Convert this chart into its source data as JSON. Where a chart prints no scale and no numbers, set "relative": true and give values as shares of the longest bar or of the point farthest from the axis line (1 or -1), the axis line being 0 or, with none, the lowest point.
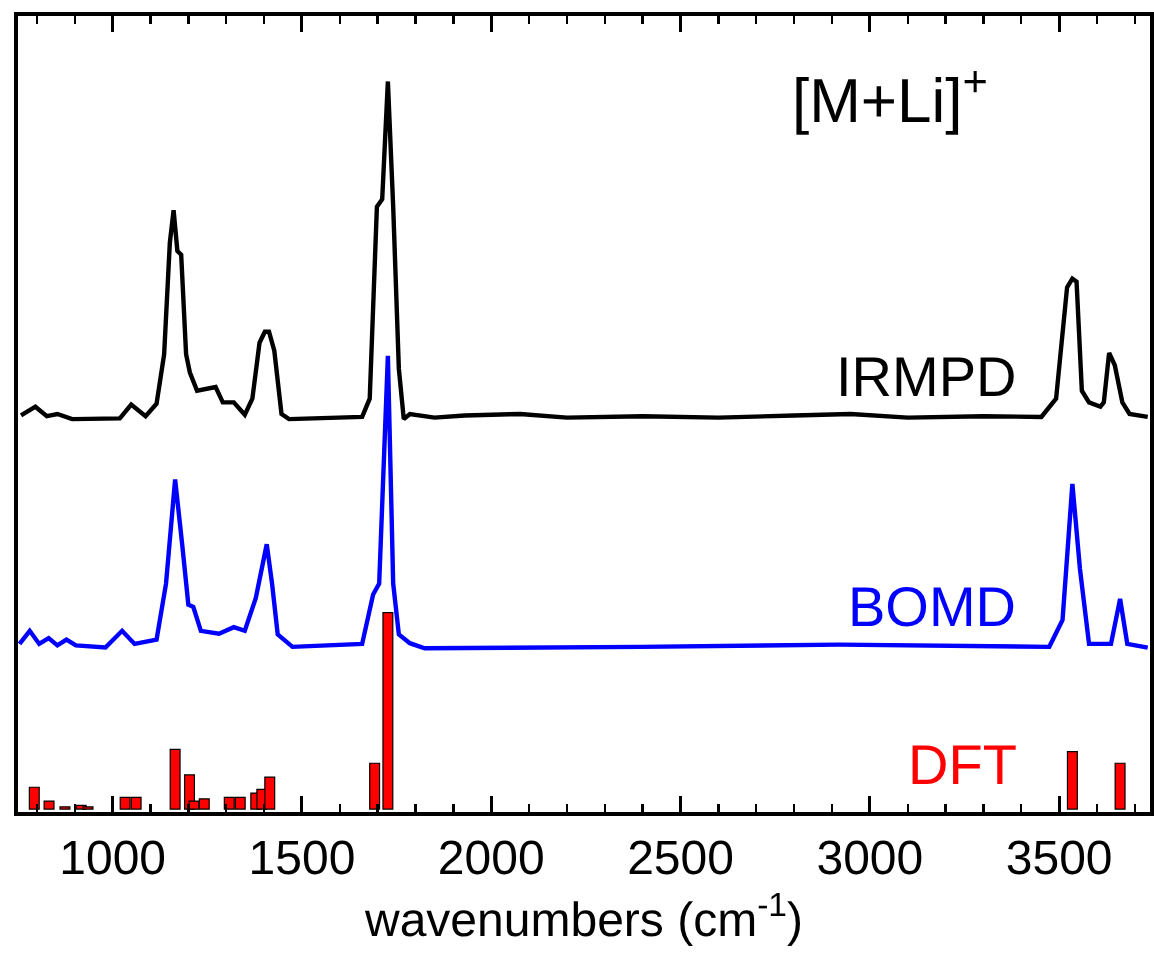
{
  "chart_data": {
    "type": "line",
    "relative": true,
    "xlabel": "wavenumbers (cm$^{-1}$)",
    "annotations": [
      "[M+Li]$^{+}$"
    ],
    "xlim": [
      750,
      3740
    ],
    "xticks": [
      {
        "value": 800,
        "label": null
      },
      {
        "value": 900,
        "label": null
      },
      1000,
      {
        "value": 1100,
        "label": null
      },
      {
        "value": 1200,
        "label": null
      },
      {
        "value": 1300,
        "label": null
      },
      {
        "value": 1400,
        "label": null
      },
      1500,
      {
        "value": 1600,
        "label": null
      },
      {
        "value": 1700,
        "label": null
      },
      {
        "value": 1800,
        "label": null
      },
      {
        "value": 1900,
        "label": null
      },
      2000,
      {
        "value": 2100,
        "label": null
      },
      {
        "value": 2200,
        "label": null
      },
      {
        "value": 2300,
        "label": null
      },
      {
        "value": 2400,
        "label": null
      },
      2500,
      {
        "value": 2600,
        "label": null
      },
      {
        "value": 2700,
        "label": null
      },
      {
        "value": 2800,
        "label": null
      },
      {
        "value": 2900,
        "label": null
      },
      3000,
      {
        "value": 3100,
        "label": null
      },
      {
        "value": 3200,
        "label": null
      },
      {
        "value": 3300,
        "label": null
      },
      {
        "value": 3400,
        "label": null
      },
      3500,
      {
        "value": 3600,
        "label": null
      },
      {
        "value": 3700,
        "label": null
      }
    ],
    "tick_labels": "x",
    "legend": false,
    "grid": false,
    "series": [
      {
        "name": "IRMPD",
        "color": "#000000",
        "x": [
          758,
          796,
          826,
          854,
          893,
          1019,
          1049,
          1087,
          1116,
          1136,
          1151,
          1161,
          1171,
          1181,
          1194,
          1204,
          1223,
          1272,
          1291,
          1320,
          1349,
          1369,
          1388,
          1402,
          1413,
          1427,
          1446,
          1466,
          1659,
          1679,
          1698,
          1712,
          1727,
          1741,
          1756,
          1769,
          1785,
          1850,
          1930,
          2076,
          2200,
          2400,
          2600,
          2800,
          2949,
          3100,
          3300,
          3453,
          3492,
          3521,
          3535,
          3546,
          3560,
          3579,
          3609,
          3618,
          3632,
          3647,
          3667,
          3686,
          3734
        ],
        "values": [
          0.541,
          0.553,
          0.54,
          0.543,
          0.536,
          0.537,
          0.556,
          0.54,
          0.557,
          0.625,
          0.778,
          0.823,
          0.767,
          0.762,
          0.625,
          0.6,
          0.575,
          0.58,
          0.559,
          0.559,
          0.542,
          0.564,
          0.641,
          0.656,
          0.656,
          0.63,
          0.543,
          0.536,
          0.539,
          0.564,
          0.828,
          0.838,
          1.0,
          0.828,
          0.605,
          0.536,
          0.543,
          0.538,
          0.541,
          0.543,
          0.538,
          0.54,
          0.538,
          0.541,
          0.543,
          0.538,
          0.54,
          0.539,
          0.564,
          0.717,
          0.729,
          0.725,
          0.575,
          0.559,
          0.553,
          0.559,
          0.627,
          0.61,
          0.559,
          0.543,
          0.539
        ]
      },
      {
        "name": "BOMD",
        "color": "#0000ff",
        "x": [
          754,
          781,
          806,
          831,
          854,
          878,
          903,
          981,
          1025,
          1058,
          1116,
          1141,
          1165,
          1184,
          1200,
          1213,
          1233,
          1281,
          1320,
          1349,
          1378,
          1407,
          1421,
          1436,
          1475,
          1659,
          1688,
          1704,
          1727,
          1741,
          1756,
          1785,
          1824,
          2395,
          2919,
          3474,
          3509,
          3535,
          3555,
          3579,
          3637,
          3661,
          3680,
          3734
        ],
        "values": [
          0.227,
          0.245,
          0.227,
          0.235,
          0.225,
          0.233,
          0.225,
          0.222,
          0.245,
          0.227,
          0.233,
          0.31,
          0.453,
          0.362,
          0.281,
          0.278,
          0.245,
          0.241,
          0.25,
          0.245,
          0.29,
          0.364,
          0.31,
          0.24,
          0.223,
          0.227,
          0.295,
          0.31,
          0.623,
          0.31,
          0.24,
          0.228,
          0.221,
          0.223,
          0.226,
          0.223,
          0.26,
          0.447,
          0.33,
          0.227,
          0.227,
          0.289,
          0.227,
          0.222
        ]
      },
      {
        "name": "DFT",
        "type": "bar",
        "color": "#ff0000",
        "x": [
          793,
          832,
          874,
          917,
          935,
          1033,
          1062,
          1165,
          1203,
          1215,
          1242,
          1308,
          1337,
          1378,
          1394,
          1415,
          1692,
          1727,
          3535,
          3661
        ],
        "values": [
          0.03,
          0.011,
          0.003,
          0.005,
          0.003,
          0.016,
          0.016,
          0.082,
          0.047,
          0.011,
          0.014,
          0.016,
          0.016,
          0.022,
          0.027,
          0.044,
          0.063,
          0.27,
          0.079,
          0.063
        ]
      }
    ]
  }
}
